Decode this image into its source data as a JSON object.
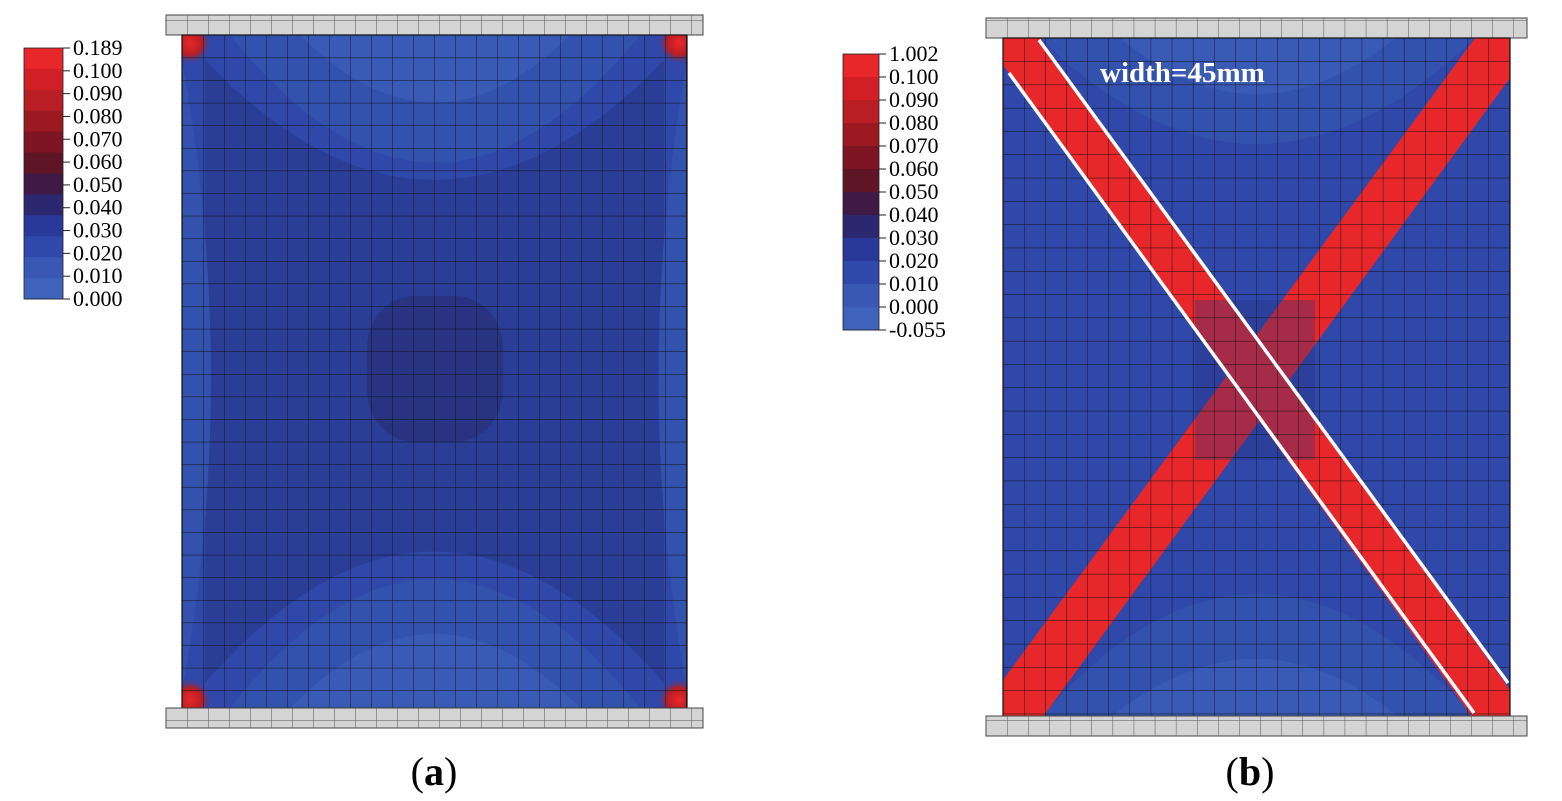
{
  "panels": [
    {
      "id": "a",
      "label": "a",
      "legend": [
        "0.189",
        "0.100",
        "0.090",
        "0.080",
        "0.070",
        "0.060",
        "0.050",
        "0.040",
        "0.030",
        "0.020",
        "0.010",
        "0.000"
      ],
      "legend_colors": [
        "#e8272a",
        "#d21f25",
        "#b81e24",
        "#9b1a22",
        "#7d1622",
        "#5e1525",
        "#3e1a45",
        "#2b2870",
        "#29399a",
        "#2f49aa",
        "#3858b4",
        "#3f62bb"
      ]
    },
    {
      "id": "b",
      "label": "b",
      "annotation": "width=45mm",
      "legend": [
        "1.002",
        "0.100",
        "0.090",
        "0.080",
        "0.070",
        "0.060",
        "0.050",
        "0.040",
        "0.030",
        "0.020",
        "0.010",
        "0.000",
        "-0.055"
      ],
      "legend_colors": [
        "#e8272a",
        "#d21f25",
        "#b81e24",
        "#9b1a22",
        "#7d1622",
        "#5e1525",
        "#3e1a45",
        "#2b2870",
        "#29399a",
        "#2f49aa",
        "#3858b4",
        "#3f62bb"
      ]
    }
  ],
  "colors": {
    "mesh_base": "#2e46a8",
    "mesh_dark": "#2a3a92",
    "mesh_light": "#3a5cb6",
    "band_red": "#e8272a",
    "grid_line": "#111111",
    "loading_plate": "#d4d4d4",
    "guide_line": "#ffffff"
  }
}
